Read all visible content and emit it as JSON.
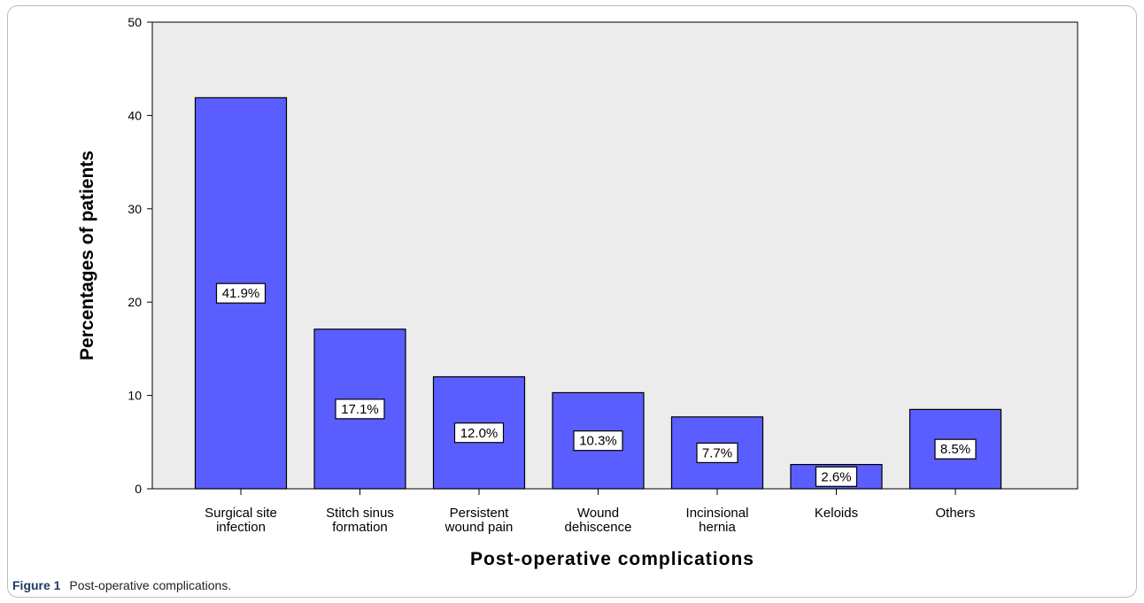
{
  "caption": {
    "figure_label": "Figure 1",
    "text": "Post-operative complications."
  },
  "colors": {
    "bar_fill": "#5a5eff",
    "plot_background": "#ececec",
    "label_box": "#ffffff"
  },
  "chart_data": {
    "type": "bar",
    "title": "",
    "xlabel": "Post-operative complications",
    "ylabel": "Percentages of patients",
    "ylim": [
      0,
      50
    ],
    "yticks": [
      0,
      10,
      20,
      30,
      40,
      50
    ],
    "grid": false,
    "categories": [
      [
        "Surgical site",
        "infection"
      ],
      [
        "Stitch sinus",
        "formation"
      ],
      [
        "Persistent",
        "wound pain"
      ],
      [
        "Wound",
        "dehiscence"
      ],
      [
        "Incinsional",
        "hernia"
      ],
      [
        "Keloids"
      ],
      [
        "Others"
      ]
    ],
    "values": [
      41.9,
      17.1,
      12.0,
      10.3,
      7.7,
      2.6,
      8.5
    ],
    "data_labels": [
      "41.9%",
      "17.1%",
      "12.0%",
      "10.3%",
      "7.7%",
      "2.6%",
      "8.5%"
    ]
  }
}
